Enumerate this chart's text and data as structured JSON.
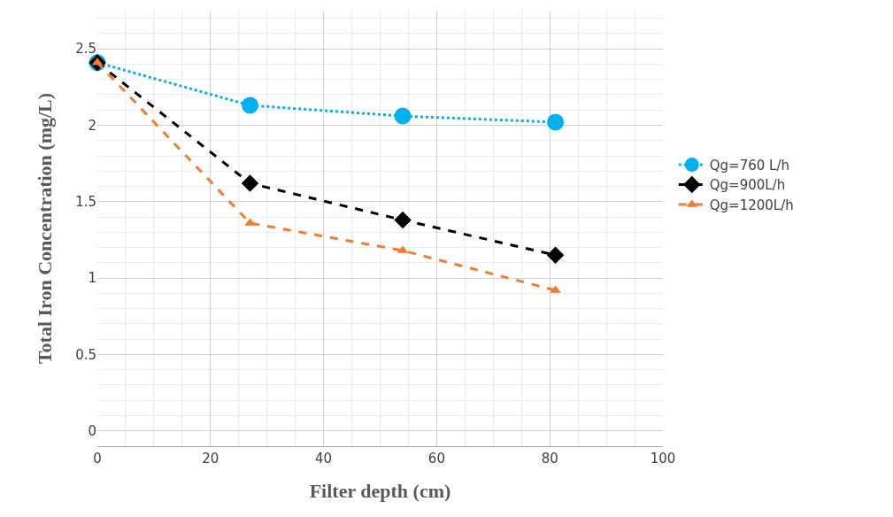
{
  "chart_data": {
    "type": "line",
    "xlabel": "Filter depth (cm)",
    "ylabel": "Total Iron Concentration (mg/L)",
    "x": [
      0,
      27,
      54,
      81
    ],
    "series": [
      {
        "name": "Qg=760 L/h",
        "color": "#00b0f0",
        "values": [
          2.41,
          2.13,
          2.06,
          2.02
        ],
        "marker": "circle",
        "line_style": "dotted"
      },
      {
        "name": "Qg=900L/h",
        "color": "#000000",
        "values": [
          2.41,
          1.62,
          1.38,
          1.15
        ],
        "marker": "diamond",
        "line_style": "dashed"
      },
      {
        "name": "Qg=1200L/h",
        "color": "#ed7d31",
        "values": [
          2.41,
          1.36,
          1.18,
          0.92
        ],
        "marker": "triangle",
        "line_style": "dashed"
      }
    ],
    "xlim": [
      0,
      100
    ],
    "xticks": [
      0,
      20,
      40,
      60,
      80,
      100
    ],
    "ylim": [
      -0.1,
      2.75
    ],
    "yticks": [
      0,
      0.5,
      1,
      1.5,
      2,
      2.5
    ],
    "grid": true,
    "legend": "right"
  }
}
